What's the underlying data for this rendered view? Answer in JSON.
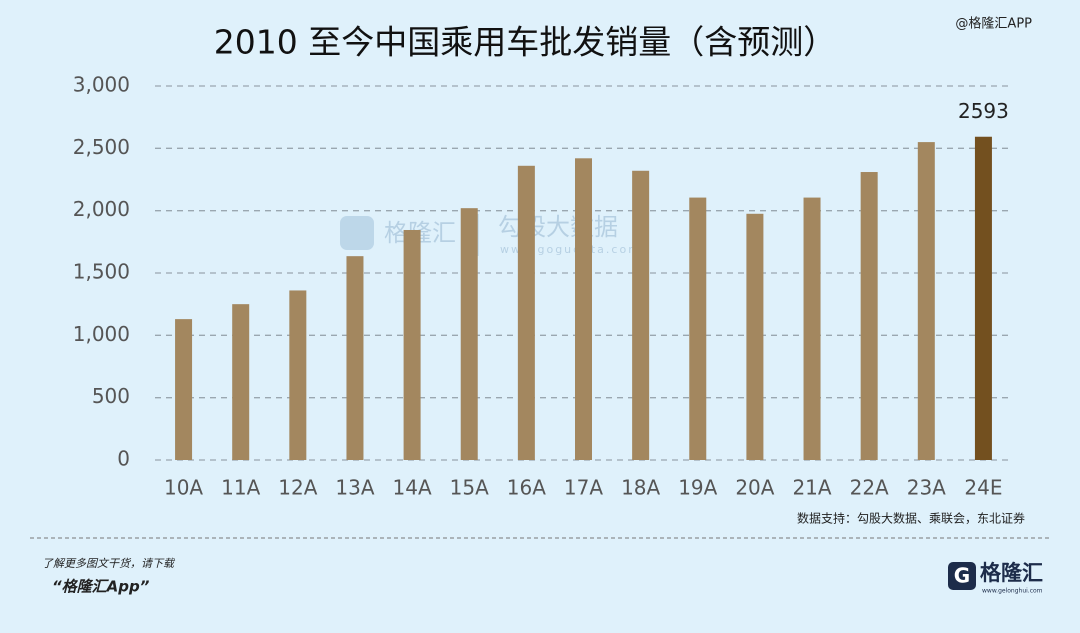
{
  "chart_data": {
    "type": "bar",
    "title": "2010 至今中国乘用车批发销量（含预测）",
    "categories": [
      "10A",
      "11A",
      "12A",
      "13A",
      "14A",
      "15A",
      "16A",
      "17A",
      "18A",
      "19A",
      "20A",
      "21A",
      "22A",
      "23A",
      "24E"
    ],
    "series": [
      {
        "values": [
          1130,
          1250,
          1360,
          1635,
          1845,
          2020,
          2360,
          2420,
          2320,
          2105,
          1975,
          2105,
          2310,
          2550,
          2593
        ],
        "colors": [
          "#a3875f",
          "#a3875f",
          "#a3875f",
          "#a3875f",
          "#a3875f",
          "#a3875f",
          "#a3875f",
          "#a3875f",
          "#a3875f",
          "#a3875f",
          "#a3875f",
          "#a3875f",
          "#a3875f",
          "#a3875f",
          "#73501f"
        ]
      }
    ],
    "labeled_index": 14,
    "ylim": [
      0,
      3000
    ],
    "yticks": [
      0,
      500,
      {
        "value": 1000,
        "label": "1,000"
      },
      {
        "value": 1500,
        "label": "1,500"
      },
      {
        "value": 2000,
        "label": "2,000"
      },
      {
        "value": 2500,
        "label": "2,500"
      },
      {
        "value": 3000,
        "label": "3,000"
      }
    ],
    "grid": true
  },
  "watermark": "@格隆汇APP",
  "center_watermark": {
    "brand": "格隆汇",
    "partner": "勾股大数据",
    "url": "www.gogudata.com"
  },
  "source": "数据支持：勾股大数据、乘联会，东北证券",
  "footer": {
    "line1": "了解更多图文干货，请下载",
    "line2": "“格隆汇App”"
  },
  "logo": {
    "name": "格隆汇",
    "url": "www.gelonghui.com"
  }
}
